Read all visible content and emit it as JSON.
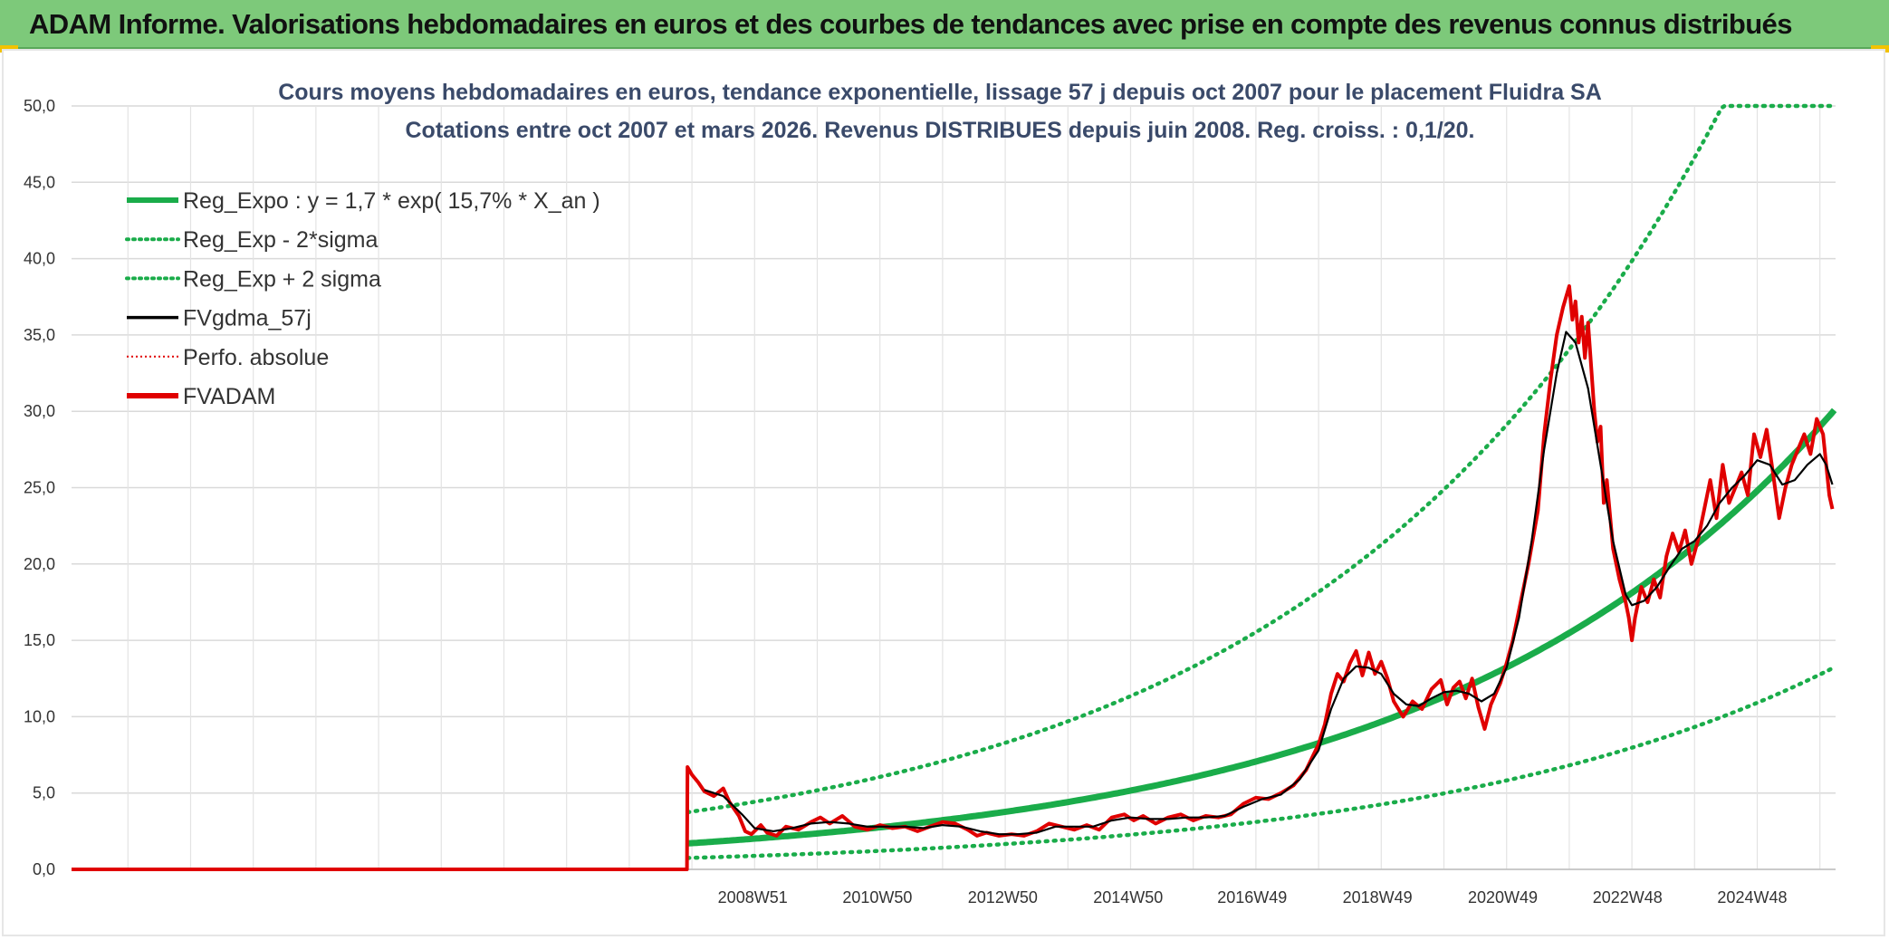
{
  "banner": {
    "title": "ADAM Informe. Valorisations hebdomadaires en euros et des courbes de tendances avec prise en compte des revenus connus distribués"
  },
  "colors": {
    "banner_bg": "#7dc97a",
    "reg_green": "#1aac4a",
    "fvgdma": "#000000",
    "perfo": "#e00000",
    "fvadam": "#e00000"
  },
  "chart_data": {
    "type": "line",
    "title_lines": [
      "Cours moyens hebdomadaires en euros, tendance exponentielle, lissage 57 j depuis oct 2007 pour le placement Fluidra SA",
      "Cotations entre oct 2007 et mars 2026. Revenus DISTRIBUES depuis juin 2008. Reg. croiss. : 0,1/20."
    ],
    "y_ticks": [
      "0,0",
      "5,0",
      "10,0",
      "15,0",
      "20,0",
      "25,0",
      "30,0",
      "35,0",
      "40,0",
      "45,0",
      "50,0"
    ],
    "ylim": [
      0,
      50
    ],
    "x_ticks": [
      "2008W51",
      "2010W50",
      "2012W50",
      "2014W50",
      "2016W49",
      "2018W49",
      "2020W49",
      "2022W48",
      "2024W48"
    ],
    "x_tick_years": [
      2008.97,
      2010.96,
      2012.96,
      2014.96,
      2016.94,
      2018.94,
      2020.94,
      2022.93,
      2024.92
    ],
    "xlim": [
      1998.1,
      2026.25
    ],
    "grid": true,
    "legend_position": "top-left",
    "legend": [
      {
        "label": "Reg_Expo : y = 1,7 * exp( 15,7% *  X_an )",
        "style": "thick-solid",
        "color": "#1aac4a"
      },
      {
        "label": "Reg_Exp - 2*sigma",
        "style": "dotted",
        "color": "#1aac4a"
      },
      {
        "label": "Reg_Exp + 2 sigma",
        "style": "dotted",
        "color": "#1aac4a"
      },
      {
        "label": "FVgdma_57j",
        "style": "solid",
        "color": "#000000"
      },
      {
        "label": "Perfo. absolue",
        "style": "dotted-thin",
        "color": "#e00000"
      },
      {
        "label": "FVADAM",
        "style": "thick-solid",
        "color": "#e00000"
      }
    ],
    "series": [
      {
        "name": "FVADAM",
        "points": [
          [
            1998.1,
            0
          ],
          [
            2007.92,
            0
          ],
          [
            2007.93,
            6.7
          ],
          [
            2008.0,
            6.2
          ],
          [
            2008.1,
            5.7
          ],
          [
            2008.2,
            5.1
          ],
          [
            2008.35,
            4.8
          ],
          [
            2008.5,
            5.3
          ],
          [
            2008.6,
            4.4
          ],
          [
            2008.75,
            3.5
          ],
          [
            2008.85,
            2.5
          ],
          [
            2008.95,
            2.3
          ],
          [
            2009.1,
            2.9
          ],
          [
            2009.2,
            2.4
          ],
          [
            2009.35,
            2.2
          ],
          [
            2009.5,
            2.8
          ],
          [
            2009.7,
            2.6
          ],
          [
            2009.9,
            3.1
          ],
          [
            2010.05,
            3.4
          ],
          [
            2010.2,
            3.0
          ],
          [
            2010.4,
            3.5
          ],
          [
            2010.6,
            2.8
          ],
          [
            2010.8,
            2.6
          ],
          [
            2011.0,
            2.9
          ],
          [
            2011.2,
            2.7
          ],
          [
            2011.4,
            2.8
          ],
          [
            2011.6,
            2.5
          ],
          [
            2011.8,
            2.8
          ],
          [
            2012.0,
            3.1
          ],
          [
            2012.2,
            3.0
          ],
          [
            2012.4,
            2.6
          ],
          [
            2012.55,
            2.2
          ],
          [
            2012.7,
            2.4
          ],
          [
            2012.9,
            2.2
          ],
          [
            2013.1,
            2.3
          ],
          [
            2013.3,
            2.2
          ],
          [
            2013.5,
            2.5
          ],
          [
            2013.7,
            3.0
          ],
          [
            2013.9,
            2.8
          ],
          [
            2014.1,
            2.6
          ],
          [
            2014.3,
            2.9
          ],
          [
            2014.5,
            2.6
          ],
          [
            2014.7,
            3.4
          ],
          [
            2014.9,
            3.6
          ],
          [
            2015.05,
            3.2
          ],
          [
            2015.2,
            3.5
          ],
          [
            2015.4,
            3.0
          ],
          [
            2015.6,
            3.4
          ],
          [
            2015.8,
            3.6
          ],
          [
            2016.0,
            3.2
          ],
          [
            2016.2,
            3.5
          ],
          [
            2016.4,
            3.4
          ],
          [
            2016.6,
            3.6
          ],
          [
            2016.8,
            4.3
          ],
          [
            2017.0,
            4.7
          ],
          [
            2017.2,
            4.6
          ],
          [
            2017.4,
            5.0
          ],
          [
            2017.6,
            5.5
          ],
          [
            2017.8,
            6.5
          ],
          [
            2018.0,
            8.2
          ],
          [
            2018.1,
            9.5
          ],
          [
            2018.2,
            11.5
          ],
          [
            2018.3,
            12.8
          ],
          [
            2018.4,
            12.3
          ],
          [
            2018.5,
            13.5
          ],
          [
            2018.6,
            14.3
          ],
          [
            2018.7,
            12.7
          ],
          [
            2018.8,
            14.2
          ],
          [
            2018.9,
            12.8
          ],
          [
            2019.0,
            13.6
          ],
          [
            2019.1,
            12.5
          ],
          [
            2019.2,
            11.0
          ],
          [
            2019.35,
            10.0
          ],
          [
            2019.5,
            11.0
          ],
          [
            2019.65,
            10.5
          ],
          [
            2019.8,
            11.8
          ],
          [
            2019.95,
            12.4
          ],
          [
            2020.05,
            10.8
          ],
          [
            2020.15,
            11.9
          ],
          [
            2020.25,
            12.3
          ],
          [
            2020.35,
            11.2
          ],
          [
            2020.45,
            12.5
          ],
          [
            2020.55,
            10.6
          ],
          [
            2020.65,
            9.2
          ],
          [
            2020.75,
            10.8
          ],
          [
            2020.9,
            12.2
          ],
          [
            2021.0,
            13.5
          ],
          [
            2021.1,
            15.0
          ],
          [
            2021.2,
            17.0
          ],
          [
            2021.35,
            20.0
          ],
          [
            2021.5,
            23.5
          ],
          [
            2021.6,
            28.5
          ],
          [
            2021.7,
            32.0
          ],
          [
            2021.8,
            35.0
          ],
          [
            2021.9,
            36.8
          ],
          [
            2022.0,
            38.2
          ],
          [
            2022.05,
            36.0
          ],
          [
            2022.1,
            37.2
          ],
          [
            2022.15,
            34.5
          ],
          [
            2022.2,
            36.2
          ],
          [
            2022.25,
            33.5
          ],
          [
            2022.3,
            35.8
          ],
          [
            2022.4,
            30.0
          ],
          [
            2022.45,
            28.0
          ],
          [
            2022.5,
            29.0
          ],
          [
            2022.55,
            24.0
          ],
          [
            2022.6,
            25.5
          ],
          [
            2022.7,
            21.0
          ],
          [
            2022.8,
            19.0
          ],
          [
            2022.9,
            17.5
          ],
          [
            2022.95,
            16.5
          ],
          [
            2023.0,
            15.0
          ],
          [
            2023.05,
            16.5
          ],
          [
            2023.15,
            18.5
          ],
          [
            2023.25,
            17.5
          ],
          [
            2023.35,
            19.0
          ],
          [
            2023.45,
            17.8
          ],
          [
            2023.55,
            20.5
          ],
          [
            2023.65,
            22.0
          ],
          [
            2023.75,
            20.8
          ],
          [
            2023.85,
            22.2
          ],
          [
            2023.95,
            20.0
          ],
          [
            2024.05,
            21.5
          ],
          [
            2024.15,
            23.5
          ],
          [
            2024.25,
            25.5
          ],
          [
            2024.35,
            23.0
          ],
          [
            2024.45,
            26.5
          ],
          [
            2024.55,
            24.0
          ],
          [
            2024.65,
            25.0
          ],
          [
            2024.75,
            26.0
          ],
          [
            2024.85,
            24.5
          ],
          [
            2024.95,
            28.5
          ],
          [
            2025.05,
            27.0
          ],
          [
            2025.15,
            28.8
          ],
          [
            2025.25,
            26.0
          ],
          [
            2025.35,
            23.0
          ],
          [
            2025.45,
            25.0
          ],
          [
            2025.55,
            26.5
          ],
          [
            2025.65,
            27.5
          ],
          [
            2025.75,
            28.5
          ],
          [
            2025.85,
            27.2
          ],
          [
            2025.95,
            29.5
          ],
          [
            2026.05,
            28.5
          ],
          [
            2026.15,
            24.5
          ],
          [
            2026.2,
            23.6
          ]
        ]
      },
      {
        "name": "FVgdma_57j",
        "points": [
          [
            2008.2,
            5.2
          ],
          [
            2008.5,
            4.8
          ],
          [
            2008.8,
            3.6
          ],
          [
            2009.0,
            2.7
          ],
          [
            2009.3,
            2.5
          ],
          [
            2009.6,
            2.7
          ],
          [
            2009.9,
            3.0
          ],
          [
            2010.2,
            3.1
          ],
          [
            2010.5,
            3.0
          ],
          [
            2010.8,
            2.8
          ],
          [
            2011.1,
            2.8
          ],
          [
            2011.4,
            2.8
          ],
          [
            2011.7,
            2.7
          ],
          [
            2012.0,
            2.9
          ],
          [
            2012.3,
            2.8
          ],
          [
            2012.6,
            2.5
          ],
          [
            2012.9,
            2.3
          ],
          [
            2013.2,
            2.3
          ],
          [
            2013.5,
            2.4
          ],
          [
            2013.8,
            2.8
          ],
          [
            2014.1,
            2.8
          ],
          [
            2014.4,
            2.8
          ],
          [
            2014.7,
            3.2
          ],
          [
            2015.0,
            3.4
          ],
          [
            2015.3,
            3.3
          ],
          [
            2015.6,
            3.3
          ],
          [
            2015.9,
            3.4
          ],
          [
            2016.2,
            3.4
          ],
          [
            2016.5,
            3.5
          ],
          [
            2016.8,
            4.1
          ],
          [
            2017.1,
            4.6
          ],
          [
            2017.4,
            4.9
          ],
          [
            2017.7,
            5.9
          ],
          [
            2018.0,
            7.8
          ],
          [
            2018.2,
            10.5
          ],
          [
            2018.4,
            12.5
          ],
          [
            2018.6,
            13.3
          ],
          [
            2018.8,
            13.2
          ],
          [
            2019.0,
            12.8
          ],
          [
            2019.2,
            11.5
          ],
          [
            2019.4,
            10.8
          ],
          [
            2019.6,
            10.7
          ],
          [
            2019.8,
            11.2
          ],
          [
            2020.0,
            11.6
          ],
          [
            2020.2,
            11.7
          ],
          [
            2020.4,
            11.5
          ],
          [
            2020.6,
            11.0
          ],
          [
            2020.8,
            11.5
          ],
          [
            2021.0,
            13.2
          ],
          [
            2021.2,
            16.5
          ],
          [
            2021.4,
            21.5
          ],
          [
            2021.6,
            27.5
          ],
          [
            2021.8,
            32.5
          ],
          [
            2021.95,
            35.2
          ],
          [
            2022.1,
            34.5
          ],
          [
            2022.3,
            31.5
          ],
          [
            2022.5,
            26.5
          ],
          [
            2022.7,
            21.5
          ],
          [
            2022.9,
            18.0
          ],
          [
            2023.0,
            17.3
          ],
          [
            2023.2,
            17.6
          ],
          [
            2023.4,
            18.5
          ],
          [
            2023.6,
            19.8
          ],
          [
            2023.8,
            21.0
          ],
          [
            2024.0,
            21.5
          ],
          [
            2024.2,
            22.5
          ],
          [
            2024.4,
            24.0
          ],
          [
            2024.6,
            25.0
          ],
          [
            2024.8,
            25.8
          ],
          [
            2025.0,
            26.8
          ],
          [
            2025.2,
            26.5
          ],
          [
            2025.4,
            25.2
          ],
          [
            2025.6,
            25.5
          ],
          [
            2025.8,
            26.5
          ],
          [
            2026.0,
            27.2
          ],
          [
            2026.1,
            26.5
          ],
          [
            2026.2,
            25.2
          ]
        ]
      }
    ],
    "regression": {
      "name": "Reg_Expo",
      "a": 1.7,
      "rate": 0.157,
      "x0": 2007.93,
      "x_end": 2026.25,
      "lower_factor": 0.44,
      "upper_factor": 2.2,
      "cap": 50
    }
  }
}
